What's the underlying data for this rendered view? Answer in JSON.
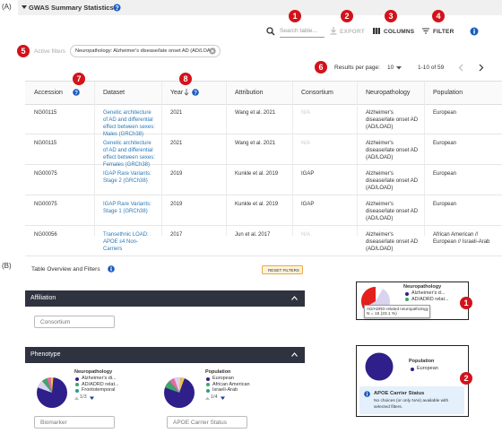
{
  "panel_a": {
    "label": "(A)",
    "title": "GWAS Summary Statistics",
    "search_placeholder": "Search table...",
    "toolbar": [
      "EXPORT",
      "COLUMNS",
      "FILTER"
    ],
    "active_filters_label": "Active filters",
    "active_filter": "Neuropathology: Alzheimer's disease/late onset AD (AD/LOAD)",
    "results_per_page_label": "Results per page:",
    "results_per_page": "10",
    "range": "1-10 of 59",
    "table": {
      "columns": [
        "Accession",
        "Dataset",
        "Year",
        "Attribution",
        "Consortium",
        "Neuropathology",
        "Population"
      ],
      "rows": [
        [
          "NG00115",
          "Genetic architecture of AD and differential effect between sexes: Males (GRCh38)",
          "2021",
          "Wang et al. 2021",
          "N/A",
          "Alzheimer's disease/late onset AD (AD/LOAD)",
          "European"
        ],
        [
          "NG00115",
          "Genetic architecture of AD and differential effect between sexes: Females (GRCh38)",
          "2021",
          "Wang et al. 2021",
          "N/A",
          "Alzheimer's disease/late onset AD (AD/LOAD)",
          "European"
        ],
        [
          "NG00075",
          "IGAP Rare Variants: Stage 2 (GRCh38)",
          "2019",
          "Kunkle et al. 2019",
          "IGAP",
          "Alzheimer's disease/late onset AD (AD/LOAD)",
          "European"
        ],
        [
          "NG00075",
          "IGAP Rare Variants: Stage 1 (GRCh38)",
          "2019",
          "Kunkle et al. 2019",
          "IGAP",
          "Alzheimer's disease/late onset AD (AD/LOAD)",
          "European"
        ],
        [
          "NG00056",
          "Transethnic LOAD: APOE ε4 Non-Carriers",
          "2017",
          "Jun et al. 2017",
          "N/A",
          "Alzheimer's disease/late onset AD (AD/LOAD)",
          "African American // European // Israeli-Arab"
        ]
      ]
    }
  },
  "panel_b": {
    "label": "(B)",
    "title": "Table Overview and Filters",
    "reset": "RESET FILTERS",
    "sections": [
      "Affiliation",
      "Phenotype"
    ],
    "selects": [
      "Consortium",
      "Biomarker",
      "APOE Carrier Status"
    ],
    "pie_legends": [
      {
        "title": "Neuropathology",
        "items": [
          "Alzheimer's di...",
          "AD/ADRD relat...",
          "Frontotemporal"
        ],
        "pager": "1/3"
      },
      {
        "title": "Population",
        "items": [
          "European",
          "African American",
          "Israeli-Arab"
        ],
        "pager": "1/4"
      }
    ],
    "zoom_neuropathology": {
      "title": "Neuropathology",
      "items": [
        "Alzheimer's d...",
        "AD/ADRD relat..."
      ],
      "tooltip_title": "AD/ADRD related neuropathology",
      "tooltip_value": "N = 15 (23.1 %)"
    },
    "zoom_population": {
      "title": "Population",
      "items": [
        "European"
      ],
      "notice_title": "APOE Carrier Status",
      "notice_text": "No choices (or only NAs) available with selected filters."
    }
  },
  "callouts": [
    "1",
    "2",
    "3",
    "4",
    "5",
    "6",
    "7",
    "8",
    "1",
    "2"
  ]
}
